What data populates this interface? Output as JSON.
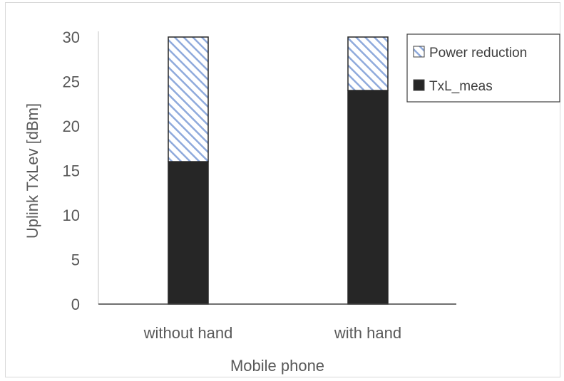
{
  "chart_data": {
    "type": "bar",
    "stacked": true,
    "categories": [
      "without hand",
      "with hand"
    ],
    "series": [
      {
        "name": "TxL_meas",
        "values": [
          16,
          24
        ],
        "color": "#262626",
        "fill": "solid"
      },
      {
        "name": "Power reduction",
        "values": [
          14,
          6
        ],
        "color": "#8faadc",
        "fill": "diagonal-hatch"
      }
    ],
    "title": "",
    "xlabel": "Mobile phone",
    "ylabel": "Uplink TxLev [dBm]",
    "ylim": [
      0,
      30
    ],
    "yticks": [
      0,
      5,
      10,
      15,
      20,
      25,
      30
    ],
    "grid": false,
    "legend_position": "top-right",
    "legend_order": [
      "Power reduction",
      "TxL_meas"
    ]
  }
}
